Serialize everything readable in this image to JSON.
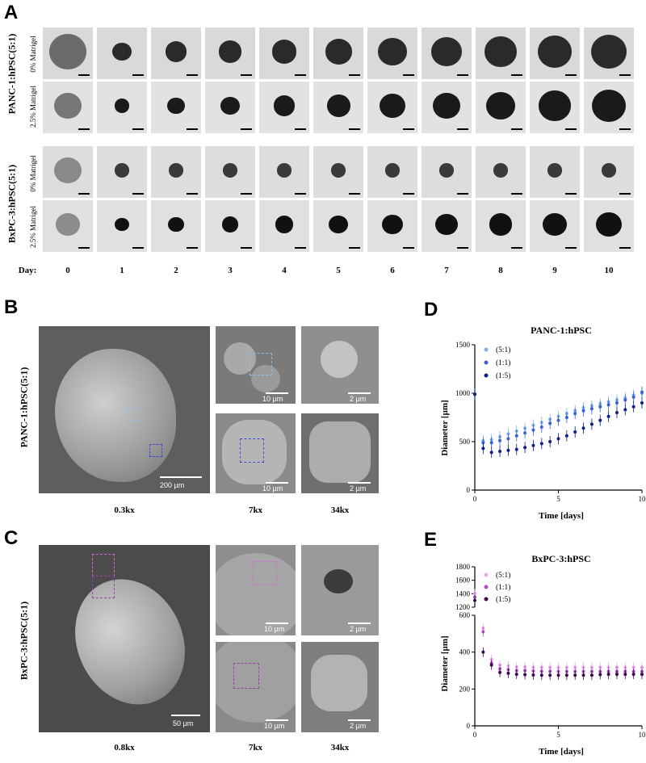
{
  "figure": {
    "panel_labels": {
      "A": "A",
      "B": "B",
      "C": "C",
      "D": "D",
      "E": "E"
    },
    "panelA": {
      "row_groups": [
        {
          "label": "PANC-1:hPSC(5:1)",
          "rows": [
            "0% Matrigel",
            "2.5% Matrigel"
          ]
        },
        {
          "label": "BxPC-3:hPSC(5:1)",
          "rows": [
            "0% Matrigel",
            "2.5% Matrigel"
          ]
        }
      ],
      "day_label": "Day:",
      "days": [
        "0",
        "1",
        "2",
        "3",
        "4",
        "5",
        "6",
        "7",
        "8",
        "9",
        "10"
      ]
    },
    "panelB": {
      "row_label": "PANC-1:hPSC(5:1)",
      "magnifications": [
        "0.3kx",
        "7kx",
        "34kx"
      ],
      "scalebars": {
        "main": "200 µm",
        "mid_top": "10 µm",
        "mid_bottom": "10 µm",
        "right_top": "2 µm",
        "right_bottom": "2 µm"
      }
    },
    "panelC": {
      "row_label": "BxPC-3:hPSC(5:1)",
      "magnifications": [
        "0.8kx",
        "7kx",
        "34kx"
      ],
      "scalebars": {
        "main": "50 µm",
        "mid_top": "10 µm",
        "mid_bottom": "10 µm",
        "right_top": "2 µm",
        "right_bottom": "2 µm"
      }
    }
  },
  "chart_data": [
    {
      "type": "scatter",
      "title": "PANC-1:hPSC",
      "xlabel": "Time [days]",
      "ylabel": "Diameter [µm]",
      "xlim": [
        0,
        10
      ],
      "ylim": [
        0,
        1500
      ],
      "xticks": [
        0,
        5,
        10
      ],
      "yticks": [
        0,
        500,
        1000,
        1500
      ],
      "legend_position": "top-left",
      "x": [
        0,
        0.5,
        1,
        1.5,
        2,
        2.5,
        3,
        3.5,
        4,
        4.5,
        5,
        5.5,
        6,
        6.5,
        7,
        7.5,
        8,
        8.5,
        9,
        9.5,
        10
      ],
      "series": [
        {
          "name": "(5:1)",
          "color": "#7fb3e8",
          "values": [
            990,
            510,
            520,
            550,
            580,
            610,
            640,
            670,
            700,
            730,
            760,
            790,
            820,
            850,
            870,
            890,
            910,
            930,
            950,
            980,
            1000
          ]
        },
        {
          "name": "(1:1)",
          "color": "#3a5fd6",
          "values": [
            990,
            490,
            490,
            510,
            530,
            560,
            590,
            620,
            650,
            690,
            720,
            750,
            790,
            820,
            840,
            860,
            880,
            900,
            930,
            960,
            1010
          ]
        },
        {
          "name": "(1:5)",
          "color": "#0d1f8c",
          "values": [
            990,
            430,
            390,
            400,
            410,
            420,
            440,
            460,
            480,
            500,
            530,
            560,
            600,
            640,
            680,
            720,
            760,
            800,
            830,
            860,
            900
          ]
        }
      ]
    },
    {
      "type": "scatter",
      "title": "BxPC-3:hPSC",
      "xlabel": "Time [days]",
      "ylabel": "Diameter [µm]",
      "xlim": [
        0,
        10
      ],
      "ylim": [
        0,
        1800
      ],
      "axis_break": [
        600,
        1200
      ],
      "xticks": [
        0,
        5,
        10
      ],
      "yticks": [
        0,
        200,
        400,
        600,
        1200,
        1400,
        1600,
        1800
      ],
      "legend_position": "top-left",
      "x": [
        0,
        0.5,
        1,
        1.5,
        2,
        2.5,
        3,
        3.5,
        4,
        4.5,
        5,
        5.5,
        6,
        6.5,
        7,
        7.5,
        8,
        8.5,
        9,
        9.5,
        10
      ],
      "series": [
        {
          "name": "(5:1)",
          "color": "#e7a6ec",
          "values": [
            1400,
            530,
            360,
            330,
            325,
            320,
            320,
            318,
            318,
            318,
            318,
            318,
            318,
            318,
            318,
            318,
            318,
            318,
            318,
            318,
            318
          ]
        },
        {
          "name": "(1:1)",
          "color": "#b04ec6",
          "values": [
            1350,
            510,
            340,
            310,
            305,
            300,
            300,
            298,
            296,
            296,
            295,
            295,
            295,
            295,
            295,
            295,
            295,
            295,
            295,
            295,
            295
          ]
        },
        {
          "name": "(1:5)",
          "color": "#3d0a4f",
          "values": [
            1300,
            400,
            330,
            290,
            285,
            280,
            278,
            276,
            275,
            275,
            275,
            275,
            275,
            275,
            275,
            278,
            280,
            280,
            280,
            280,
            280
          ]
        }
      ]
    }
  ]
}
